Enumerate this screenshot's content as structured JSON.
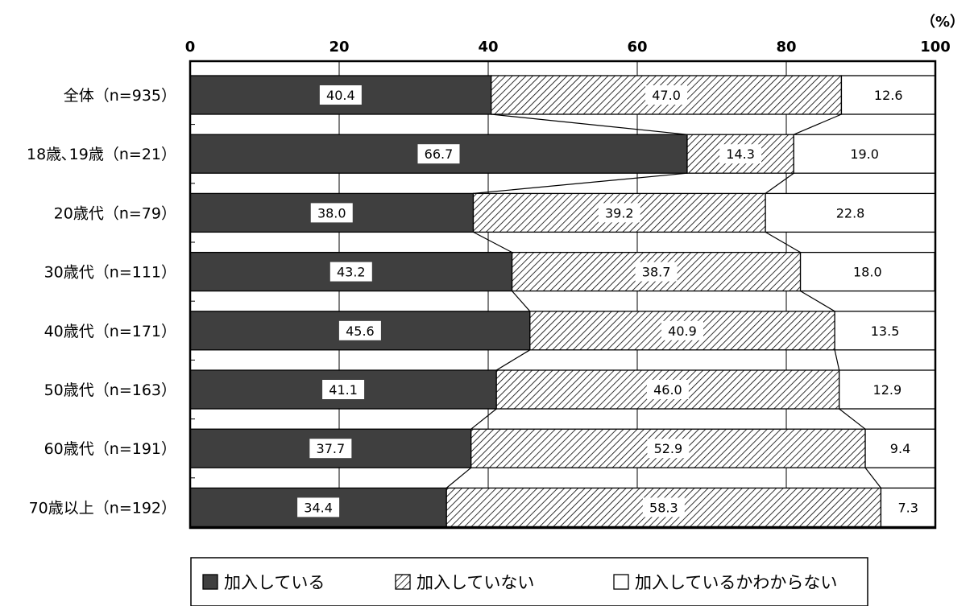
{
  "chart_data": {
    "type": "bar",
    "orientation": "horizontal",
    "stacked": true,
    "unit_label": "（%）",
    "xlim": [
      0,
      100
    ],
    "x_ticks": [
      "0",
      "20",
      "40",
      "60",
      "80",
      "100"
    ],
    "categories": [
      "全体（n=935）",
      "18歳､19歳（n=21）",
      "20歳代（n=79）",
      "30歳代（n=111）",
      "40歳代（n=171）",
      "50歳代（n=163）",
      "60歳代（n=191）",
      "70歳以上（n=192）"
    ],
    "series": [
      {
        "name": "加入している",
        "fill": "solid",
        "color": "#3f3f3f",
        "values": [
          40.4,
          66.7,
          38.0,
          43.2,
          45.6,
          41.1,
          37.7,
          34.4
        ],
        "labels": [
          "40.4",
          "66.7",
          "38.0",
          "43.2",
          "45.6",
          "41.1",
          "37.7",
          "34.4"
        ]
      },
      {
        "name": "加入していない",
        "fill": "hatch",
        "color": "#000000",
        "values": [
          47.0,
          14.3,
          39.2,
          38.7,
          40.9,
          46.0,
          52.9,
          58.3
        ],
        "labels": [
          "47.0",
          "14.3",
          "39.2",
          "38.7",
          "40.9",
          "46.0",
          "52.9",
          "58.3"
        ]
      },
      {
        "name": "加入しているかわからない",
        "fill": "none",
        "color": "#ffffff",
        "values": [
          12.6,
          19.0,
          22.8,
          18.0,
          13.5,
          12.9,
          9.4,
          7.3
        ],
        "labels": [
          "12.6",
          "19.0",
          "22.8",
          "18.0",
          "13.5",
          "12.9",
          "9.4",
          "7.3"
        ]
      }
    ],
    "grid": true,
    "series_lines": true,
    "legend_position": "bottom"
  }
}
